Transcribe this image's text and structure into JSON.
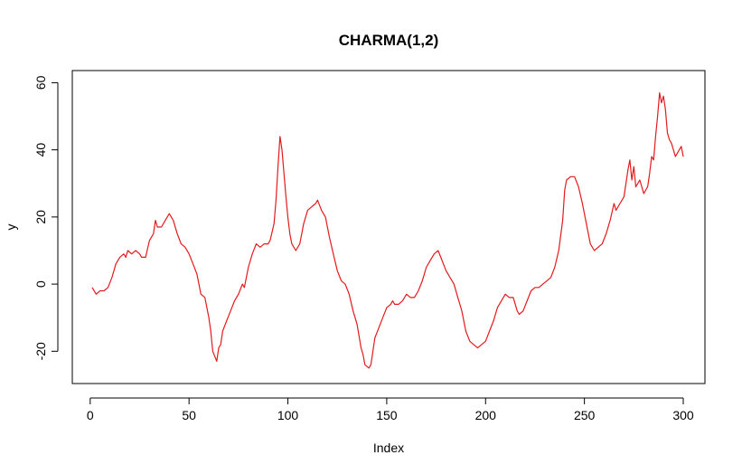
{
  "chart_data": {
    "type": "line",
    "title": "CHARMA(1,2)",
    "xlabel": "Index",
    "ylabel": "y",
    "xlim": [
      1,
      300
    ],
    "ylim": [
      -28,
      62
    ],
    "x_ticks": [
      0,
      50,
      100,
      150,
      200,
      250,
      300
    ],
    "y_ticks": [
      -20,
      0,
      20,
      40,
      60
    ],
    "series": [
      {
        "color": "#e41a1c",
        "points": [
          [
            1,
            -1
          ],
          [
            3,
            -3
          ],
          [
            5,
            -2
          ],
          [
            7,
            -2
          ],
          [
            9,
            -1
          ],
          [
            11,
            2
          ],
          [
            13,
            6
          ],
          [
            15,
            8
          ],
          [
            17,
            9
          ],
          [
            18,
            8
          ],
          [
            19,
            10
          ],
          [
            21,
            9
          ],
          [
            23,
            10
          ],
          [
            25,
            9
          ],
          [
            26,
            8
          ],
          [
            28,
            8
          ],
          [
            30,
            13
          ],
          [
            32,
            15
          ],
          [
            33,
            19
          ],
          [
            34,
            17
          ],
          [
            36,
            17
          ],
          [
            38,
            19
          ],
          [
            40,
            21
          ],
          [
            42,
            19
          ],
          [
            44,
            15
          ],
          [
            46,
            12
          ],
          [
            48,
            11
          ],
          [
            50,
            9
          ],
          [
            52,
            6
          ],
          [
            54,
            3
          ],
          [
            55,
            0
          ],
          [
            56,
            -3
          ],
          [
            58,
            -4
          ],
          [
            60,
            -10
          ],
          [
            61,
            -14
          ],
          [
            62,
            -20
          ],
          [
            64,
            -23
          ],
          [
            65,
            -19
          ],
          [
            66,
            -18
          ],
          [
            67,
            -14
          ],
          [
            69,
            -11
          ],
          [
            71,
            -8
          ],
          [
            73,
            -5
          ],
          [
            75,
            -3
          ],
          [
            77,
            0
          ],
          [
            78,
            -1
          ],
          [
            80,
            5
          ],
          [
            82,
            9
          ],
          [
            84,
            12
          ],
          [
            86,
            11
          ],
          [
            88,
            12
          ],
          [
            90,
            12
          ],
          [
            91,
            13
          ],
          [
            93,
            18
          ],
          [
            94,
            25
          ],
          [
            95,
            35
          ],
          [
            96,
            44
          ],
          [
            97,
            40
          ],
          [
            98,
            33
          ],
          [
            99,
            26
          ],
          [
            100,
            20
          ],
          [
            101,
            15
          ],
          [
            102,
            12
          ],
          [
            104,
            10
          ],
          [
            106,
            12
          ],
          [
            108,
            18
          ],
          [
            110,
            22
          ],
          [
            112,
            23
          ],
          [
            114,
            24
          ],
          [
            115,
            25
          ],
          [
            117,
            22
          ],
          [
            119,
            20
          ],
          [
            121,
            14
          ],
          [
            123,
            9
          ],
          [
            125,
            4
          ],
          [
            127,
            1
          ],
          [
            129,
            0
          ],
          [
            131,
            -3
          ],
          [
            133,
            -8
          ],
          [
            135,
            -12
          ],
          [
            137,
            -19
          ],
          [
            138,
            -21
          ],
          [
            139,
            -24
          ],
          [
            141,
            -25
          ],
          [
            142,
            -24
          ],
          [
            144,
            -16
          ],
          [
            146,
            -13
          ],
          [
            148,
            -10
          ],
          [
            150,
            -7
          ],
          [
            152,
            -6
          ],
          [
            153,
            -5
          ],
          [
            154,
            -6
          ],
          [
            156,
            -6
          ],
          [
            158,
            -5
          ],
          [
            160,
            -3
          ],
          [
            162,
            -4
          ],
          [
            164,
            -4
          ],
          [
            166,
            -2
          ],
          [
            168,
            1
          ],
          [
            170,
            5
          ],
          [
            172,
            7
          ],
          [
            174,
            9
          ],
          [
            176,
            10
          ],
          [
            178,
            7
          ],
          [
            180,
            4
          ],
          [
            182,
            2
          ],
          [
            184,
            0
          ],
          [
            186,
            -4
          ],
          [
            188,
            -8
          ],
          [
            190,
            -14
          ],
          [
            192,
            -17
          ],
          [
            194,
            -18
          ],
          [
            196,
            -19
          ],
          [
            198,
            -18
          ],
          [
            200,
            -17
          ],
          [
            202,
            -14
          ],
          [
            204,
            -11
          ],
          [
            206,
            -7
          ],
          [
            208,
            -5
          ],
          [
            210,
            -3
          ],
          [
            212,
            -4
          ],
          [
            214,
            -4
          ],
          [
            216,
            -8
          ],
          [
            217,
            -9
          ],
          [
            219,
            -8
          ],
          [
            221,
            -5
          ],
          [
            223,
            -2
          ],
          [
            225,
            -1
          ],
          [
            227,
            -1
          ],
          [
            229,
            0
          ],
          [
            231,
            1
          ],
          [
            233,
            2
          ],
          [
            235,
            5
          ],
          [
            237,
            10
          ],
          [
            239,
            19
          ],
          [
            240,
            28
          ],
          [
            241,
            31
          ],
          [
            243,
            32
          ],
          [
            245,
            32
          ],
          [
            247,
            29
          ],
          [
            249,
            24
          ],
          [
            251,
            18
          ],
          [
            253,
            12
          ],
          [
            255,
            10
          ],
          [
            257,
            11
          ],
          [
            259,
            12
          ],
          [
            261,
            15
          ],
          [
            263,
            19
          ],
          [
            265,
            24
          ],
          [
            266,
            22
          ],
          [
            268,
            24
          ],
          [
            270,
            26
          ],
          [
            271,
            30
          ],
          [
            272,
            34
          ],
          [
            273,
            37
          ],
          [
            274,
            31
          ],
          [
            275,
            35
          ],
          [
            276,
            29
          ],
          [
            277,
            30
          ],
          [
            278,
            31
          ],
          [
            280,
            27
          ],
          [
            282,
            29
          ],
          [
            283,
            33
          ],
          [
            284,
            38
          ],
          [
            285,
            37
          ],
          [
            286,
            44
          ],
          [
            287,
            50
          ],
          [
            288,
            57
          ],
          [
            289,
            54
          ],
          [
            290,
            56
          ],
          [
            291,
            52
          ],
          [
            292,
            45
          ],
          [
            293,
            43
          ],
          [
            294,
            42
          ],
          [
            296,
            38
          ],
          [
            298,
            40
          ],
          [
            299,
            41
          ],
          [
            300,
            38
          ]
        ]
      }
    ]
  }
}
